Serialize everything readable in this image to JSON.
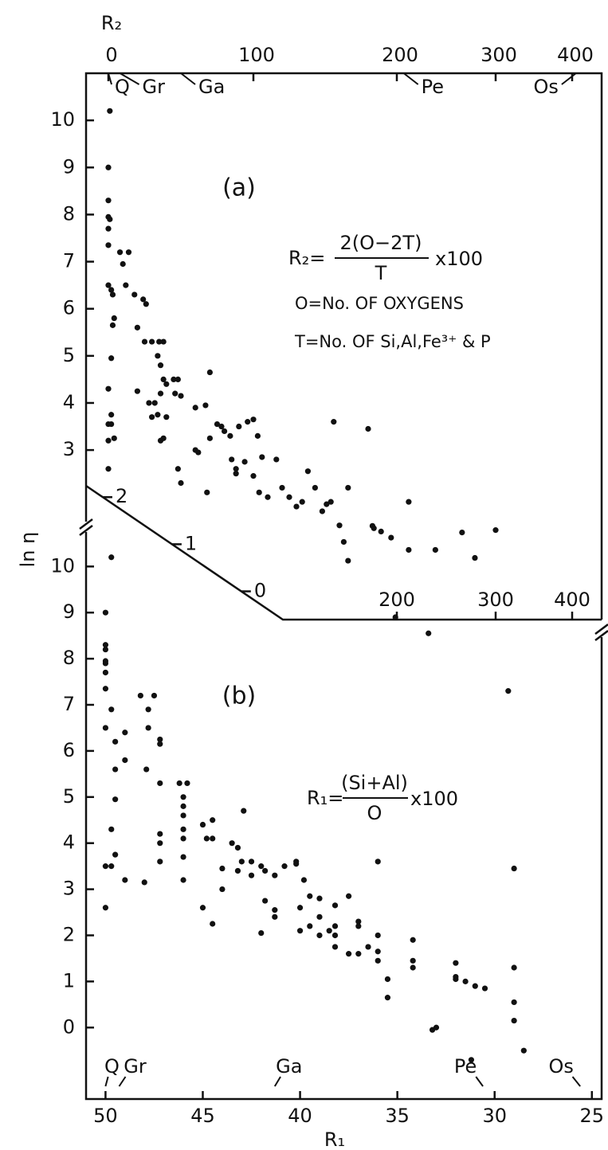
{
  "y_label": "ln η",
  "chart_data": [
    {
      "type": "scatter",
      "panel": "(a)",
      "x_label": "R₂",
      "xlim": [
        -15,
        438
      ],
      "xticks": [
        0,
        100,
        200,
        300,
        400
      ],
      "ylim": [
        -0.6,
        11
      ],
      "yticks": [
        0,
        1,
        2,
        3,
        4,
        5,
        6,
        7,
        8,
        9,
        10
      ],
      "color": "#111111",
      "formula": {
        "lhs": "R₂=",
        "numerator": "2(O−2T)",
        "denominator": "T",
        "factor": "x100"
      },
      "notes": [
        "O=No. OF OXYGENS",
        "T=No. OF Si,Al,Fe³⁺ & P"
      ],
      "annotations": [
        {
          "text": "Q",
          "x": 0
        },
        {
          "text": "Gr",
          "x": 8
        },
        {
          "text": "Ga",
          "x": 50
        },
        {
          "text": "Pe",
          "x": 207
        },
        {
          "text": "Os",
          "x": 405
        }
      ],
      "x": [
        1,
        0,
        0,
        0,
        1,
        0,
        0,
        0,
        2,
        3,
        4,
        3,
        2,
        0,
        0,
        2,
        2,
        0,
        4,
        0,
        8,
        10,
        14,
        12,
        18,
        24,
        26,
        20,
        25,
        30,
        35,
        38,
        34,
        36,
        38,
        40,
        45,
        46,
        48,
        50,
        36,
        32,
        28,
        20,
        30,
        34,
        40,
        38,
        36,
        48,
        50,
        60,
        60,
        62,
        67,
        70,
        70,
        75,
        78,
        80,
        84,
        90,
        96,
        100,
        103,
        68,
        85,
        88,
        88,
        94,
        100,
        104,
        106,
        110,
        116,
        120,
        125,
        130,
        134,
        138,
        143,
        148,
        151,
        154,
        166,
        183,
        184,
        189,
        196,
        212,
        239,
        266,
        279,
        156,
        180,
        160,
        163,
        166,
        300,
        212
      ],
      "y": [
        10.2,
        9.0,
        8.3,
        7.95,
        7.9,
        7.7,
        7.35,
        6.5,
        6.4,
        6.3,
        5.8,
        5.65,
        4.95,
        4.3,
        3.55,
        3.55,
        3.75,
        3.2,
        3.25,
        2.6,
        7.2,
        6.95,
        7.2,
        6.5,
        6.3,
        6.2,
        6.1,
        5.6,
        5.3,
        5.3,
        5.3,
        5.3,
        5.0,
        4.8,
        4.5,
        4.4,
        4.5,
        4.2,
        4.5,
        4.15,
        4.2,
        4.0,
        4.0,
        4.25,
        3.7,
        3.75,
        3.7,
        3.25,
        3.2,
        2.6,
        2.3,
        3.9,
        3.0,
        2.95,
        3.95,
        4.65,
        3.25,
        3.55,
        3.5,
        3.4,
        3.3,
        3.5,
        3.6,
        3.65,
        3.3,
        2.1,
        2.8,
        2.6,
        2.5,
        2.75,
        2.45,
        2.1,
        2.85,
        2.0,
        2.8,
        2.2,
        2.0,
        1.8,
        1.9,
        2.55,
        2.2,
        1.7,
        1.85,
        1.9,
        2.2,
        1.39,
        1.34,
        1.27,
        1.14,
        0.88,
        0.88,
        1.25,
        0.71,
        3.6,
        3.45,
        1.4,
        1.05,
        0.65,
        1.3,
        1.9
      ]
    },
    {
      "type": "scatter",
      "panel": "(b)",
      "x_label": "R₁",
      "xlim": [
        51,
        24.5
      ],
      "xticks": [
        50,
        45,
        40,
        35,
        30,
        25
      ],
      "ylim": [
        -1.55,
        10.8
      ],
      "yticks": [
        0,
        1,
        2,
        3,
        4,
        5,
        6,
        7,
        8,
        9,
        10
      ],
      "color": "#111111",
      "formula": {
        "lhs": "R₁=",
        "numerator": "(Si+Al)",
        "denominator": "O",
        "factor": "x100"
      },
      "annotations": [
        {
          "text": "Q",
          "x": 50
        },
        {
          "text": "Gr",
          "x": 49.3
        },
        {
          "text": "Ga",
          "x": 41.3
        },
        {
          "text": "Pe",
          "x": 30.6
        },
        {
          "text": "Os",
          "x": 25.6
        }
      ],
      "x": [
        50,
        50,
        50,
        50,
        50,
        50,
        50,
        50,
        50,
        50,
        49.7,
        49.7,
        49.7,
        49.7,
        49.5,
        49.5,
        49.5,
        49.5,
        49,
        49,
        49,
        48.2,
        47.8,
        47.8,
        47.5,
        47.2,
        47.2,
        47.2,
        47.2,
        47.2,
        47.2,
        47.9,
        48,
        46.2,
        46,
        46,
        46,
        46,
        46,
        46,
        46,
        45.8,
        45,
        45,
        44.8,
        44.5,
        44.5,
        44.5,
        44,
        44,
        43.5,
        43.2,
        43.2,
        43,
        42.9,
        42.5,
        42.5,
        42,
        42,
        41.8,
        41.8,
        41.3,
        41.3,
        41.3,
        40.8,
        40.2,
        40.2,
        40,
        40,
        39.8,
        39.5,
        39.5,
        39,
        39,
        39,
        38.5,
        38.2,
        38.2,
        38.2,
        38.2,
        37.5,
        37.5,
        37,
        37,
        37,
        36.5,
        36,
        36,
        36,
        36,
        35.5,
        35.5,
        34.2,
        34.2,
        34.2,
        33.2,
        33,
        32,
        32,
        32,
        31.5,
        31,
        30.5,
        29,
        29,
        29,
        29,
        31.2,
        28.5,
        35.1,
        33.4,
        29.3
      ],
      "y": [
        9.0,
        8.3,
        8.2,
        7.95,
        7.9,
        7.7,
        7.35,
        6.5,
        3.5,
        2.6,
        10.2,
        6.9,
        4.3,
        3.5,
        6.2,
        5.6,
        4.95,
        3.75,
        6.4,
        5.8,
        3.2,
        7.2,
        6.9,
        6.5,
        7.2,
        6.25,
        6.15,
        5.3,
        4.2,
        4.0,
        3.6,
        5.6,
        3.15,
        5.3,
        5.0,
        4.8,
        4.6,
        4.3,
        4.1,
        3.7,
        3.2,
        5.3,
        4.4,
        2.6,
        4.1,
        4.5,
        4.1,
        2.25,
        3.45,
        3.0,
        4.0,
        3.9,
        3.4,
        3.6,
        4.7,
        3.6,
        3.3,
        2.05,
        3.5,
        3.4,
        2.75,
        3.3,
        2.55,
        2.4,
        3.5,
        3.6,
        3.55,
        2.6,
        2.1,
        3.2,
        2.85,
        2.2,
        2.8,
        2.4,
        2.0,
        2.1,
        2.65,
        2.2,
        1.75,
        2.0,
        2.85,
        1.6,
        2.3,
        2.2,
        1.6,
        1.75,
        3.6,
        2.0,
        1.65,
        1.45,
        1.05,
        0.65,
        1.9,
        1.45,
        1.3,
        -0.05,
        0,
        1.4,
        1.1,
        1.05,
        1.0,
        0.9,
        0.85,
        3.45,
        1.3,
        0.55,
        0.15,
        -0.7,
        -0.5,
        8.9,
        8.55,
        7.3
      ]
    }
  ]
}
